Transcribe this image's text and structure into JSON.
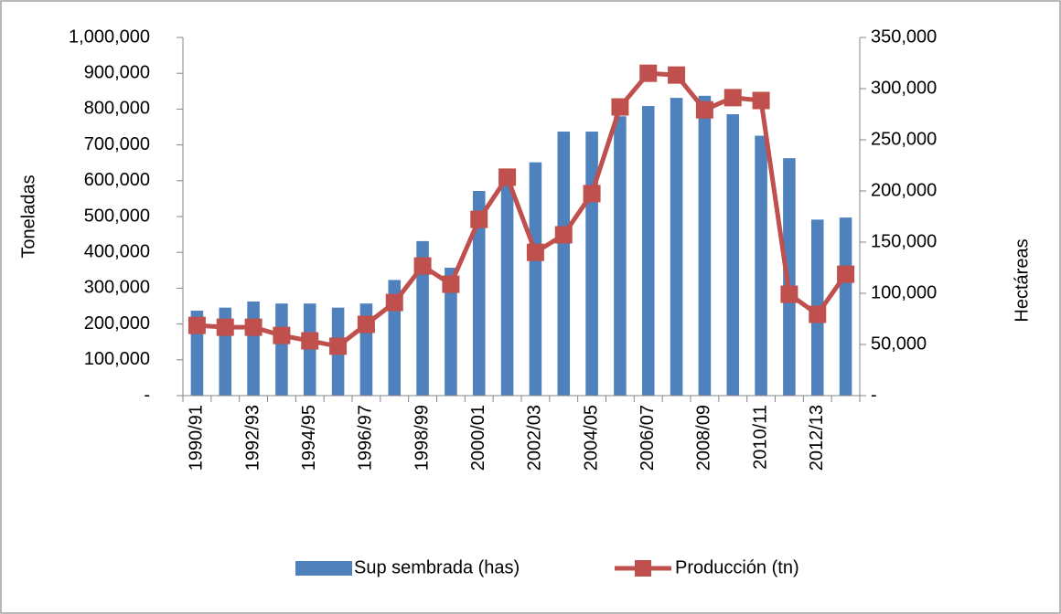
{
  "chart_data": {
    "type": "bar_line",
    "y_label": "Toneladas",
    "y2_label": "Hectáreas",
    "categories": [
      "1990/91",
      null,
      "1992/93",
      null,
      "1994/95",
      null,
      "1996/97",
      null,
      "1998/99",
      null,
      "2000/01",
      null,
      "2002/03",
      null,
      "2004/05",
      null,
      "2006/07",
      null,
      "2008/09",
      null,
      "2010/11",
      null,
      "2012/13",
      null
    ],
    "series": [
      {
        "name": "Sup sembrada (has)",
        "kind": "bar",
        "axis": "y2",
        "color": "#4f81bd",
        "values": [
          83000,
          86000,
          92000,
          90000,
          90000,
          86000,
          90000,
          113000,
          151000,
          125000,
          200000,
          207000,
          228000,
          258000,
          258000,
          273000,
          283000,
          291000,
          293000,
          275000,
          254000,
          232000,
          172000,
          174000
        ]
      },
      {
        "name": "Producción (tn)",
        "kind": "line",
        "axis": "y",
        "color": "#c0504d",
        "values": [
          196000,
          191000,
          191000,
          168000,
          153000,
          138000,
          199000,
          260000,
          362000,
          311000,
          492000,
          610000,
          400000,
          449000,
          564000,
          806000,
          900000,
          895000,
          798000,
          832000,
          824000,
          283000,
          227000,
          339000
        ]
      }
    ],
    "ylim": [
      0,
      1000000
    ],
    "yticks": [
      {
        "value": 0,
        "label": "-"
      },
      {
        "value": 100000,
        "label": "100,000"
      },
      {
        "value": 200000,
        "label": "200,000"
      },
      {
        "value": 300000,
        "label": "300,000"
      },
      {
        "value": 400000,
        "label": "400,000"
      },
      {
        "value": 500000,
        "label": "500,000"
      },
      {
        "value": 600000,
        "label": "600,000"
      },
      {
        "value": 700000,
        "label": "700,000"
      },
      {
        "value": 800000,
        "label": "800,000"
      },
      {
        "value": 900000,
        "label": "900,000"
      },
      {
        "value": 1000000,
        "label": "1,000,000"
      }
    ],
    "y2lim": [
      0,
      350000
    ],
    "y2ticks": [
      {
        "value": 0,
        "label": "-"
      },
      {
        "value": 50000,
        "label": "50,000"
      },
      {
        "value": 100000,
        "label": "100,000"
      },
      {
        "value": 150000,
        "label": "150,000"
      },
      {
        "value": 200000,
        "label": "200,000"
      },
      {
        "value": 250000,
        "label": "250,000"
      },
      {
        "value": 300000,
        "label": "300,000"
      },
      {
        "value": 350000,
        "label": "350,000"
      }
    ],
    "legend": "bottom"
  }
}
